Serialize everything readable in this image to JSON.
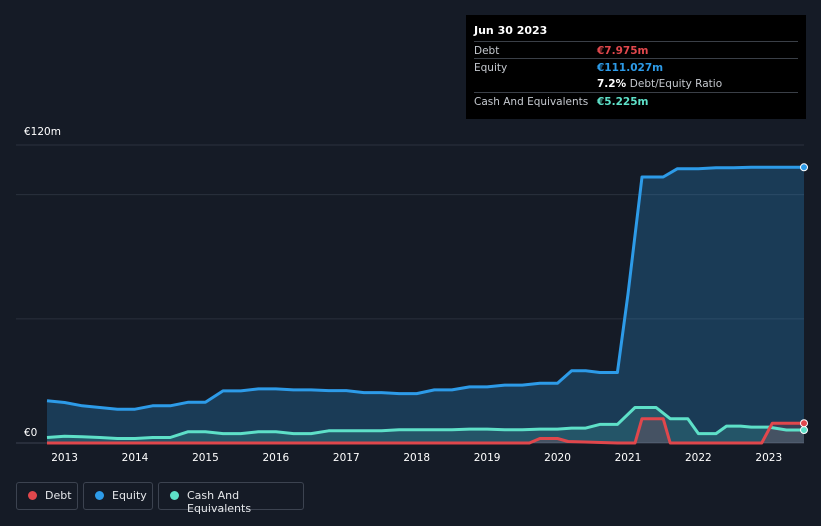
{
  "tooltip": {
    "date": "Jun 30 2023",
    "debt_label": "Debt",
    "debt_value": "€7.975m",
    "equity_label": "Equity",
    "equity_value": "€111.027m",
    "ratio_value": "7.2%",
    "ratio_label": "Debt/Equity Ratio",
    "cash_label": "Cash And Equivalents",
    "cash_value": "€5.225m"
  },
  "colors": {
    "debt": "#e0474c",
    "equity": "#2d9be8",
    "cash": "#5ee0c8",
    "background": "#151b26"
  },
  "legend": [
    {
      "label": "Debt",
      "color": "#e0474c"
    },
    {
      "label": "Equity",
      "color": "#2d9be8"
    },
    {
      "label": "Cash And Equivalents",
      "color": "#5ee0c8"
    }
  ],
  "chart_data": {
    "type": "area",
    "title": "",
    "ylim": [
      0,
      120
    ],
    "y_tick_labels": [
      {
        "value": 120,
        "label": "€120m"
      },
      {
        "value": 0,
        "label": "€0"
      }
    ],
    "gridlines": [
      0,
      50,
      100,
      120
    ],
    "x_ticks": [
      2013,
      2014,
      2015,
      2016,
      2017,
      2018,
      2019,
      2020,
      2021,
      2022,
      2023
    ],
    "x_range": [
      2012.75,
      2023.5
    ],
    "series": [
      {
        "name": "Equity",
        "color": "#2d9be8",
        "points": [
          [
            2012.75,
            17
          ],
          [
            2013.0,
            16.3
          ],
          [
            2013.25,
            15
          ],
          [
            2013.5,
            14.3
          ],
          [
            2013.75,
            13.6
          ],
          [
            2014.0,
            13.6
          ],
          [
            2014.25,
            15
          ],
          [
            2014.5,
            15
          ],
          [
            2014.75,
            16.4
          ],
          [
            2015.0,
            16.4
          ],
          [
            2015.25,
            21
          ],
          [
            2015.5,
            21
          ],
          [
            2015.75,
            21.8
          ],
          [
            2016.0,
            21.8
          ],
          [
            2016.25,
            21.4
          ],
          [
            2016.5,
            21.4
          ],
          [
            2016.75,
            21.1
          ],
          [
            2017.0,
            21.1
          ],
          [
            2017.25,
            20.3
          ],
          [
            2017.5,
            20.3
          ],
          [
            2017.75,
            19.9
          ],
          [
            2018.0,
            19.9
          ],
          [
            2018.25,
            21.4
          ],
          [
            2018.5,
            21.4
          ],
          [
            2018.75,
            22.6
          ],
          [
            2019.0,
            22.6
          ],
          [
            2019.25,
            23.3
          ],
          [
            2019.5,
            23.3
          ],
          [
            2019.75,
            24.1
          ],
          [
            2020.0,
            24.1
          ],
          [
            2020.2,
            29.1
          ],
          [
            2020.4,
            29.1
          ],
          [
            2020.6,
            28.4
          ],
          [
            2020.85,
            28.4
          ],
          [
            2021.0,
            60
          ],
          [
            2021.2,
            107.1
          ],
          [
            2021.5,
            107.1
          ],
          [
            2021.7,
            110.4
          ],
          [
            2022.0,
            110.4
          ],
          [
            2022.25,
            110.8
          ],
          [
            2022.5,
            110.8
          ],
          [
            2022.75,
            111
          ],
          [
            2023.0,
            111
          ],
          [
            2023.25,
            111.03
          ],
          [
            2023.5,
            111.03
          ]
        ]
      },
      {
        "name": "Cash And Equivalents",
        "color": "#5ee0c8",
        "points": [
          [
            2012.75,
            2.2
          ],
          [
            2013.0,
            2.7
          ],
          [
            2013.25,
            2.5
          ],
          [
            2013.5,
            2.2
          ],
          [
            2013.75,
            1.8
          ],
          [
            2014.0,
            1.8
          ],
          [
            2014.25,
            2.2
          ],
          [
            2014.5,
            2.2
          ],
          [
            2014.75,
            4.5
          ],
          [
            2015.0,
            4.5
          ],
          [
            2015.25,
            3.8
          ],
          [
            2015.5,
            3.8
          ],
          [
            2015.75,
            4.5
          ],
          [
            2016.0,
            4.5
          ],
          [
            2016.25,
            3.8
          ],
          [
            2016.5,
            3.8
          ],
          [
            2016.75,
            4.9
          ],
          [
            2017.0,
            4.9
          ],
          [
            2017.25,
            4.9
          ],
          [
            2017.5,
            4.9
          ],
          [
            2017.75,
            5.3
          ],
          [
            2018.0,
            5.3
          ],
          [
            2018.25,
            5.3
          ],
          [
            2018.5,
            5.3
          ],
          [
            2018.75,
            5.6
          ],
          [
            2019.0,
            5.6
          ],
          [
            2019.25,
            5.3
          ],
          [
            2019.5,
            5.3
          ],
          [
            2019.75,
            5.6
          ],
          [
            2020.0,
            5.6
          ],
          [
            2020.2,
            6
          ],
          [
            2020.4,
            6
          ],
          [
            2020.6,
            7.5
          ],
          [
            2020.85,
            7.5
          ],
          [
            2021.1,
            14.3
          ],
          [
            2021.4,
            14.3
          ],
          [
            2021.6,
            9.8
          ],
          [
            2021.85,
            9.8
          ],
          [
            2022.0,
            3.8
          ],
          [
            2022.25,
            3.8
          ],
          [
            2022.4,
            6.8
          ],
          [
            2022.6,
            6.8
          ],
          [
            2022.75,
            6.4
          ],
          [
            2023.0,
            6.4
          ],
          [
            2023.25,
            5.225
          ],
          [
            2023.5,
            5.225
          ]
        ]
      },
      {
        "name": "Debt",
        "color": "#e0474c",
        "points": [
          [
            2012.75,
            0
          ],
          [
            2019.6,
            0
          ],
          [
            2019.75,
            1.8
          ],
          [
            2020.0,
            1.8
          ],
          [
            2020.15,
            0.6
          ],
          [
            2020.85,
            0
          ],
          [
            2021.1,
            0
          ],
          [
            2021.2,
            9.8
          ],
          [
            2021.5,
            9.8
          ],
          [
            2021.6,
            0
          ],
          [
            2022.9,
            0
          ],
          [
            2023.05,
            7.975
          ],
          [
            2023.5,
            7.975
          ]
        ]
      }
    ]
  }
}
